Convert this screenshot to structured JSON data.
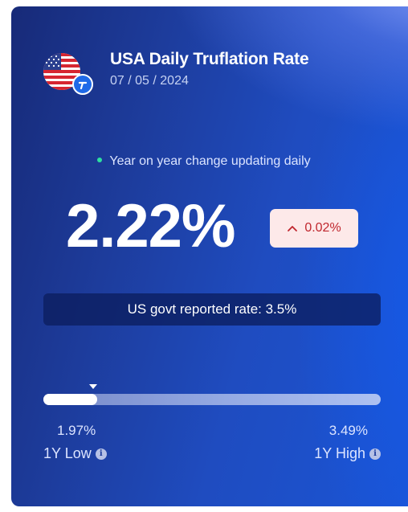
{
  "header": {
    "title": "USA Daily Truflation Rate",
    "date": "07 / 05 / 2024",
    "flag_icon": "us-flag-icon",
    "logo_icon": "truflation-logo-icon"
  },
  "live": {
    "label": "Year on year change updating daily",
    "dot_color": "#2ee0a0"
  },
  "rate": {
    "value": "2.22%",
    "change": "0.02%",
    "change_direction": "up",
    "change_color": "#c0262d"
  },
  "govt": {
    "label": "US govt reported rate: 3.5%"
  },
  "range": {
    "low_value": "1.97%",
    "high_value": "3.49%",
    "low_label": "1Y Low",
    "high_label": "1Y High",
    "current_fraction": 0.16
  }
}
